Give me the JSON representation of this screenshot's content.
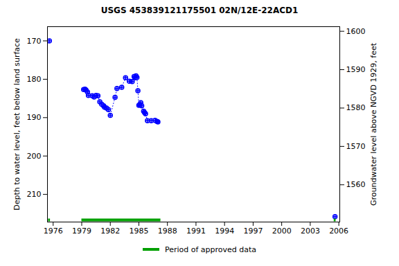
{
  "chart_data": {
    "type": "line",
    "title": "USGS 453839121175501 02N/12E-22ACD1",
    "y_label": "Depth to water level, feet below land surface",
    "y2_label": "Groundwater level above NGVD 1929, feet",
    "x": [
      1975.6,
      1977.5,
      1979.2,
      1979.35,
      1979.45,
      1979.6,
      1979.7,
      1980.1,
      1980.3,
      1980.5,
      1980.7,
      1980.9,
      1981.1,
      1981.3,
      1981.4,
      1981.6,
      1981.8,
      1982.0,
      1982.5,
      1982.7,
      1983.2,
      1983.6,
      1984.0,
      1984.3,
      1984.5,
      1984.6,
      1984.7,
      1984.8,
      1984.9,
      1985.0,
      1985.1,
      1985.2,
      1985.3,
      1985.5,
      1985.6,
      1985.7,
      1985.9,
      1986.3,
      1986.7,
      1986.9,
      1987.0,
      1996.0,
      2005.6
    ],
    "values": [
      170.0,
      null,
      182.7,
      182.6,
      182.8,
      183.3,
      184.2,
      184.3,
      184.6,
      184.2,
      184.3,
      185.9,
      186.5,
      186.9,
      187.3,
      187.5,
      187.9,
      189.4,
      184.7,
      182.4,
      182.1,
      179.6,
      180.5,
      180.6,
      179.3,
      179.6,
      179.1,
      179.5,
      183.0,
      186.8,
      186.6,
      186.1,
      186.9,
      188.3,
      188.7,
      189.0,
      190.8,
      190.8,
      190.7,
      191.0,
      191.1,
      null,
      215.8
    ],
    "color": "#0000ff",
    "marker": "circle",
    "line_style": "dotted",
    "xlim": [
      1975.4,
      2006.1
    ],
    "xticks": [
      1976,
      1979,
      1982,
      1985,
      1988,
      1991,
      1994,
      1997,
      2000,
      2003,
      2006
    ],
    "ylim": [
      217.2,
      166.3
    ],
    "yticks": [
      170,
      180,
      190,
      200,
      210
    ],
    "y2lim": [
      1550.3,
      1601.2
    ],
    "y2ticks": [
      1560,
      1570,
      1580,
      1590,
      1600
    ],
    "approved_periods": {
      "name": "Period of approved data",
      "color": "#00a000",
      "ranges": [
        [
          1975.5,
          1975.7
        ],
        [
          1979.0,
          1987.3
        ],
        [
          2005.5,
          2005.7
        ]
      ]
    },
    "grid": false,
    "legend": "bottom"
  }
}
